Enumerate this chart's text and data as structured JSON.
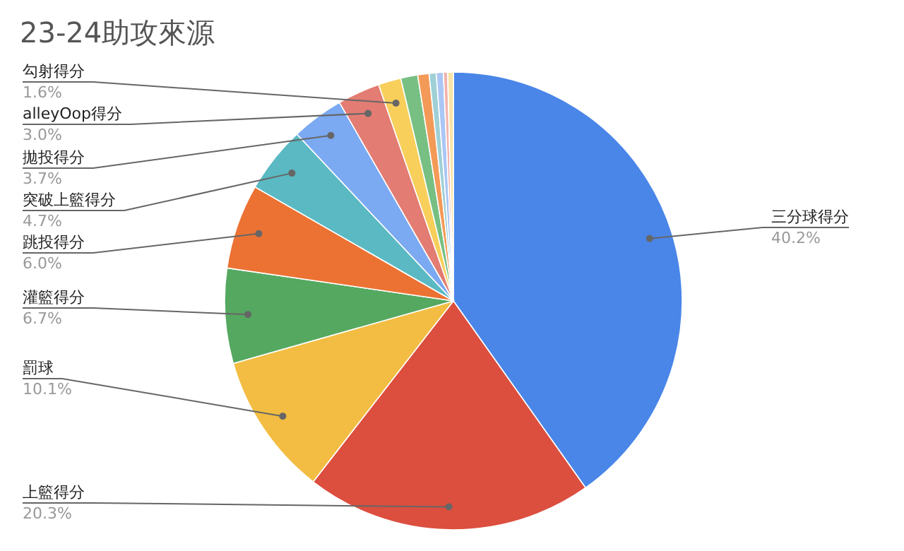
{
  "chart_data": {
    "type": "pie",
    "title": "23-24助攻來源",
    "categories": [
      "三分球得分",
      "上籃得分",
      "罰球",
      "灌籃得分",
      "跳投得分",
      "突破上籃得分",
      "拋投得分",
      "alleyOop得分",
      "勾射得分",
      null,
      null,
      null,
      null,
      null,
      null
    ],
    "values": [
      40.2,
      20.3,
      10.1,
      6.7,
      6.0,
      4.7,
      3.7,
      3.0,
      1.6,
      1.2,
      0.8,
      0.5,
      0.5,
      0.3,
      0.4
    ],
    "value_labels": [
      "40.2%",
      "20.3%",
      "10.1%",
      "6.7%",
      "6.0%",
      "4.7%",
      "3.7%",
      "3.0%",
      "1.6%",
      null,
      null,
      null,
      null,
      null,
      null
    ],
    "colors": [
      "#4a86e8",
      "#dc4e3e",
      "#f2bd42",
      "#55a860",
      "#ec7233",
      "#5ab9c3",
      "#7ba9f2",
      "#e37c72",
      "#f7cf5a",
      "#77bf82",
      "#f39a58",
      "#9fd0d6",
      "#aac6f5",
      "#f2b3ad",
      "#f8e4a8"
    ]
  }
}
